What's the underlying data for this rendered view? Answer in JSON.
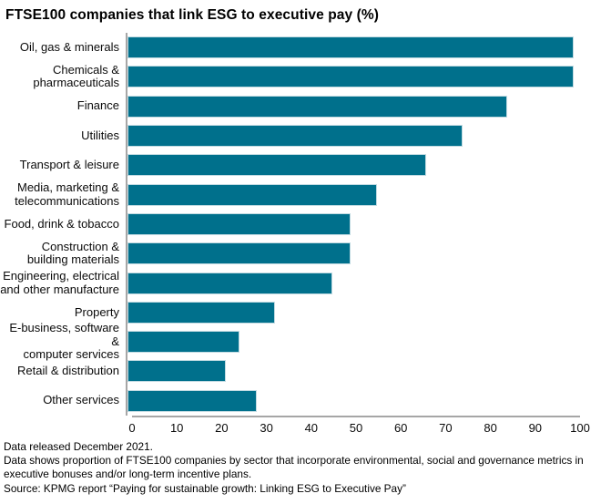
{
  "title": "FTSE100 companies that link ESG to executive pay (%)",
  "chart_data": {
    "type": "bar",
    "orientation": "horizontal",
    "title": "FTSE100 companies that link ESG to executive pay (%)",
    "categories": [
      "Oil, gas & minerals",
      "Chemicals &\npharmaceuticals",
      "Finance",
      "Utilities",
      "Transport & leisure",
      "Media, marketing &\ntelecommunications",
      "Food, drink & tobacco",
      "Construction &\nbuilding materials",
      "Engineering, electrical\nand other manufacture",
      "Property",
      "E-business, software &\ncomputer services",
      "Retail & distribution",
      "Other services"
    ],
    "values": [
      100,
      100,
      85,
      75,
      67,
      56,
      50,
      50,
      46,
      33,
      25,
      22,
      29
    ],
    "xlabel": "",
    "ylabel": "",
    "xlim": [
      0,
      100
    ],
    "x_ticks": [
      0,
      10,
      20,
      30,
      40,
      50,
      60,
      70,
      80,
      90,
      100
    ],
    "grid": false,
    "legend": false,
    "bar_color": "#00708c",
    "bar_border_color": "#c2dbe2",
    "axis_color": "#a6a6a6"
  },
  "footnotes": {
    "release": "Data released December 2021.",
    "description": "Data shows proportion of FTSE100 companies by sector that incorporate environmental, social and governance metrics in executive bonuses and/or long-term incentive plans.",
    "source": "Source: KPMG report “Paying for sustainable growth: Linking ESG to Executive Pay”"
  }
}
